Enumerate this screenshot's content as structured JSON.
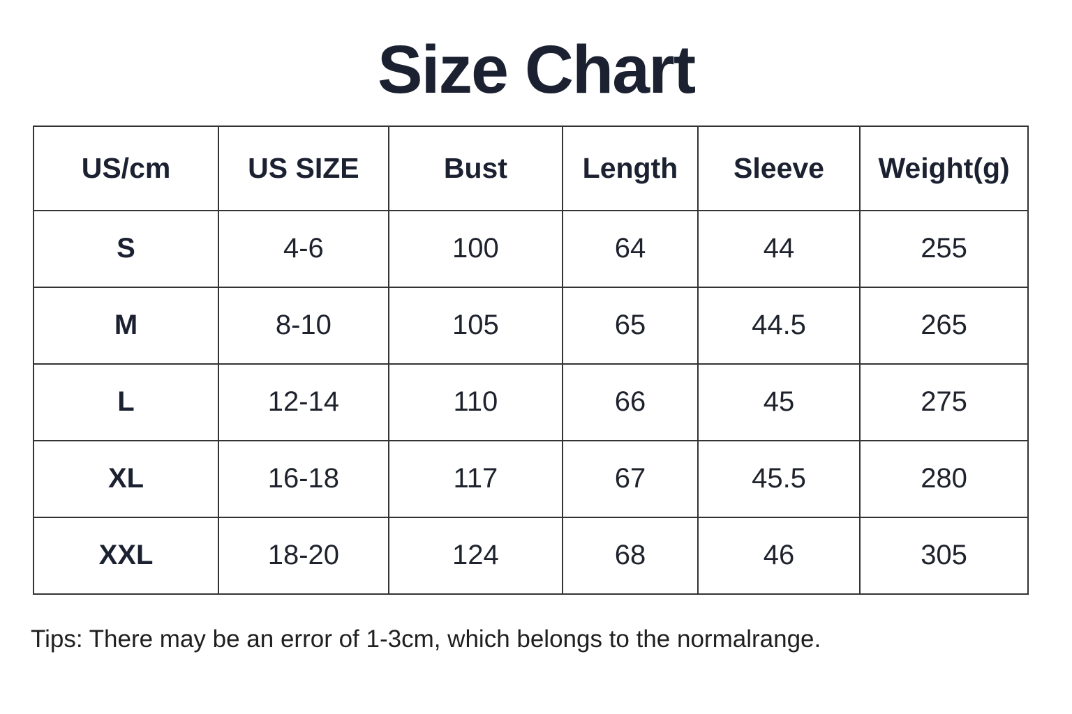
{
  "page": {
    "title": "Size Chart",
    "tips": "Tips: There may be an error of 1-3cm, which belongs to the normalrange."
  },
  "colors": {
    "background": "#ffffff",
    "title_text": "#1b2130",
    "body_text": "#1e222c",
    "table_border": "#333333"
  },
  "chart_data": {
    "type": "table",
    "title": "Size Chart",
    "columns": [
      "US/cm",
      "US SIZE",
      "Bust",
      "Length",
      "Sleeve",
      "Weight(g)"
    ],
    "rows": [
      [
        "S",
        "4-6",
        "100",
        "64",
        "44",
        "255"
      ],
      [
        "M",
        "8-10",
        "105",
        "65",
        "44.5",
        "265"
      ],
      [
        "L",
        "12-14",
        "110",
        "66",
        "45",
        "275"
      ],
      [
        "XL",
        "16-18",
        "117",
        "67",
        "45.5",
        "280"
      ],
      [
        "XXL",
        "18-20",
        "124",
        "68",
        "46",
        "305"
      ]
    ],
    "note": "Tips: There may be an error of 1-3cm, which belongs to the normalrange.",
    "layout": {
      "column_width_percents": [
        18.6,
        17.1,
        17.5,
        13.6,
        16.3,
        16.9
      ],
      "grid": "all-borders",
      "units_note_in_header": "US/cm"
    }
  }
}
